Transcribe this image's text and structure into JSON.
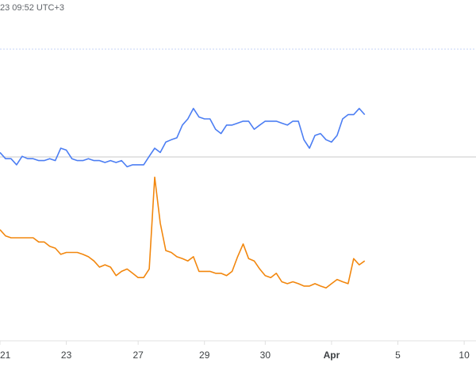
{
  "header": {
    "timestamp": "23 09:52 UTC+3"
  },
  "colors": {
    "series_blue": "#4c7ef3",
    "series_orange": "#f2870e",
    "grid": "#e0e0e0",
    "dotted": "#c6d3f7",
    "baseline": "#c8c8c8"
  },
  "chart_data": {
    "type": "line",
    "title": "",
    "xlabel": "",
    "ylabel": "",
    "x_tick_labels": [
      {
        "x": 0,
        "label": "21",
        "bold": false
      },
      {
        "x": 12,
        "label": "23",
        "bold": false
      },
      {
        "x": 25,
        "label": "27",
        "bold": false
      },
      {
        "x": 37,
        "label": "29",
        "bold": false
      },
      {
        "x": 48,
        "label": "30",
        "bold": false
      },
      {
        "x": 60,
        "label": "Apr",
        "bold": true
      },
      {
        "x": 72,
        "label": "5",
        "bold": false
      },
      {
        "x": 84,
        "label": "10",
        "bold": false
      }
    ],
    "xlim": [
      0,
      87
    ],
    "ylim": [
      0,
      100
    ],
    "series": [
      {
        "color": "#4c7ef3",
        "values": [
          60.5,
          58.9,
          58.9,
          57.3,
          59.5,
          58.9,
          58.9,
          58.4,
          58.4,
          58.9,
          58.4,
          61.6,
          61.1,
          58.9,
          58.4,
          58.4,
          58.9,
          58.4,
          58.4,
          57.9,
          58.4,
          57.9,
          58.4,
          56.8,
          57.3,
          57.3,
          57.3,
          59.5,
          61.6,
          60.5,
          63.2,
          63.8,
          64.3,
          67.6,
          69.2,
          71.9,
          69.7,
          69.2,
          69.2,
          66.5,
          65.4,
          67.6,
          67.6,
          68.1,
          68.6,
          68.6,
          66.5,
          67.6,
          68.6,
          68.6,
          68.6,
          68.1,
          67.6,
          68.6,
          68.6,
          63.8,
          61.6,
          64.9,
          65.4,
          63.8,
          63.2,
          64.9,
          69.2,
          70.3,
          70.3,
          71.9,
          70.3
        ]
      },
      {
        "color": "#f2870e",
        "values": [
          40.5,
          38.9,
          38.4,
          38.4,
          38.4,
          38.4,
          38.4,
          37.3,
          37.3,
          36.2,
          35.7,
          34.1,
          34.6,
          34.6,
          34.6,
          34.1,
          33.5,
          32.4,
          30.8,
          31.4,
          30.8,
          28.6,
          29.7,
          30.3,
          29.2,
          28.1,
          28.1,
          30.3,
          54.1,
          42.2,
          35.1,
          34.6,
          33.5,
          33.0,
          32.4,
          33.5,
          29.7,
          29.7,
          29.7,
          29.2,
          29.2,
          28.6,
          29.7,
          33.5,
          36.8,
          33.0,
          32.4,
          30.3,
          28.6,
          28.1,
          29.2,
          27.0,
          26.5,
          27.0,
          26.5,
          25.9,
          25.9,
          26.5,
          25.9,
          25.4,
          26.5,
          27.6,
          27.0,
          26.5,
          33.0,
          31.4,
          32.4
        ]
      }
    ]
  }
}
